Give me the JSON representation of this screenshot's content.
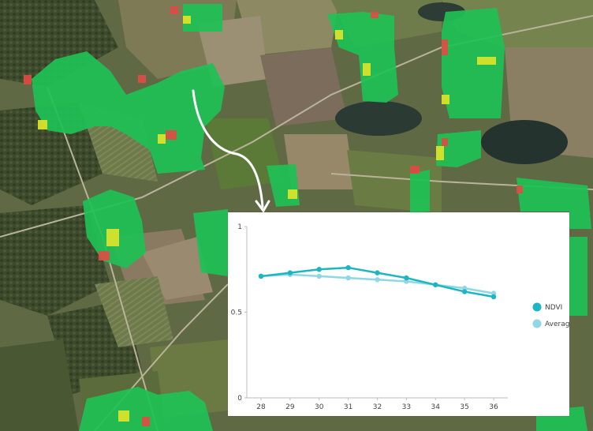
{
  "map": {
    "background_color": "#5f6a44",
    "ndvi_colors": {
      "high": "#1fc155",
      "medium": "#d8e32a",
      "low": "#e24a44"
    }
  },
  "chart_data": {
    "type": "line",
    "x": [
      28,
      29,
      30,
      31,
      32,
      33,
      34,
      35,
      36
    ],
    "ylim": [
      0,
      1
    ],
    "yticks": [
      0,
      0.5,
      1
    ],
    "grid": false,
    "legend_position": "right",
    "series": [
      {
        "name": "NDVI",
        "color": "#1cb5c2",
        "values": [
          0.71,
          0.73,
          0.75,
          0.76,
          0.73,
          0.7,
          0.66,
          0.62,
          0.59
        ]
      },
      {
        "name": "Average",
        "color": "#8fd7e5",
        "values": [
          0.71,
          0.72,
          0.71,
          0.7,
          0.69,
          0.68,
          0.66,
          0.64,
          0.61
        ]
      }
    ]
  }
}
